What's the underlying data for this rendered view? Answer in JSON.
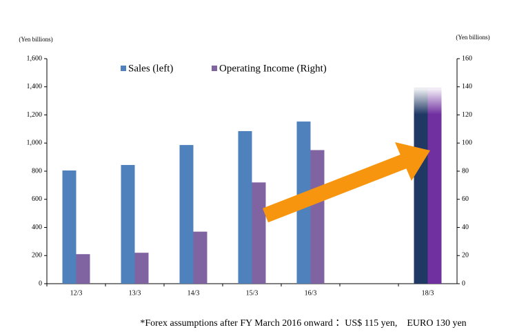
{
  "chart_data": {
    "type": "bar",
    "y_axis_label": "(Yen billions)",
    "y2_axis_label": "(Yen billions)",
    "categories": [
      "12/3",
      "13/3",
      "14/3",
      "15/3",
      "16/3",
      null,
      "18/3"
    ],
    "series": [
      {
        "name": "Sales (left)",
        "color": "#4f81bd",
        "colors": [
          "#4f81bd",
          "#4f81bd",
          "#4f81bd",
          "#4f81bd",
          "#4f81bd",
          null,
          "#1f3864"
        ],
        "values": [
          805,
          844,
          986,
          1085,
          1153,
          null,
          1390
        ]
      },
      {
        "name": "Operating Income (Right)",
        "color": "#8064a2",
        "axis": "y2",
        "colors": [
          "#8064a2",
          "#8064a2",
          "#8064a2",
          "#8064a2",
          "#8064a2",
          null,
          "#7030a0"
        ],
        "values": [
          21,
          22,
          37,
          72,
          95,
          null,
          139
        ]
      }
    ],
    "ylim": [
      0,
      1600
    ],
    "yticks": [
      0,
      200,
      400,
      600,
      800,
      {
        "value": 1000,
        "label": "1,000"
      },
      {
        "value": 1200,
        "label": "1,200"
      },
      {
        "value": 1400,
        "label": "1,400"
      },
      {
        "value": 1600,
        "label": "1,600"
      }
    ],
    "y2lim": [
      0,
      160
    ],
    "y2ticks": [
      0,
      20,
      40,
      60,
      80,
      100,
      120,
      140,
      160
    ],
    "footnote": "*Forex assumptions after FY March 2016 onward ：US$ 115 yen,　EURO 130 yen"
  }
}
